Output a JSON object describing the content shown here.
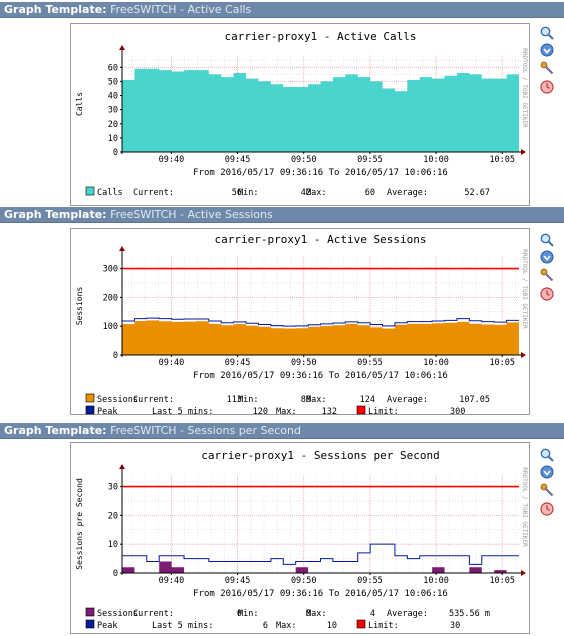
{
  "graphs": [
    {
      "header_prefix": "Graph Template:",
      "header_name": "FreeSWITCH - Active Calls",
      "chart_data": {
        "type": "area",
        "title": "carrier-proxy1 - Active Calls",
        "ylabel": "Calls",
        "side_text": "RRDTOOL / TOBI OETIKER",
        "x_ticks": [
          "09:40",
          "09:45",
          "09:50",
          "09:55",
          "10:00",
          "10:05"
        ],
        "y_ticks": [
          "0",
          "10",
          "20",
          "30",
          "40",
          "50",
          "60"
        ],
        "ylim": [
          0,
          68
        ],
        "xlim": [
          "09:36:16",
          "10:06:16"
        ],
        "time_range": "From 2016/05/17 09:36:16 To 2016/05/17 10:06:16",
        "series": [
          {
            "name": "Calls",
            "color": "#49d4cd",
            "kind": "area",
            "values": [
              51,
              59,
              59,
              58,
              57,
              58,
              58,
              55,
              53,
              56,
              52,
              50,
              48,
              46,
              46,
              48,
              50,
              53,
              55,
              53,
              50,
              45,
              43,
              51,
              53,
              52,
              54,
              56,
              55,
              52,
              52,
              55
            ]
          }
        ],
        "legend": [
          [
            {
              "swatch": "#49d4cd",
              "label": "Calls"
            },
            {
              "text": "Current:"
            },
            {
              "text": "56"
            },
            {
              "text": "Min:"
            },
            {
              "text": "42"
            },
            {
              "text": "Max:"
            },
            {
              "text": "60"
            },
            {
              "text": "Average:"
            },
            {
              "text": "52.67"
            }
          ]
        ]
      }
    },
    {
      "header_prefix": "Graph Template:",
      "header_name": "FreeSWITCH - Active Sessions",
      "chart_data": {
        "type": "area",
        "title": "carrier-proxy1 - Active Sessions",
        "ylabel": "Sessions",
        "side_text": "RRDTOOL / TOBI OETIKER",
        "x_ticks": [
          "09:40",
          "09:45",
          "09:50",
          "09:55",
          "10:00",
          "10:05"
        ],
        "y_ticks": [
          "0",
          "100",
          "200",
          "300"
        ],
        "ylim": [
          0,
          340
        ],
        "xlim": [
          "09:36:16",
          "10:06:16"
        ],
        "time_range": "From 2016/05/17 09:36:16 To 2016/05/17 10:06:16",
        "limit": 300,
        "series": [
          {
            "name": "Sessions",
            "color": "#ea8f00",
            "kind": "area",
            "values": [
              107,
              118,
              120,
              117,
              115,
              116,
              117,
              108,
              103,
              107,
              102,
              97,
              93,
              92,
              93,
              97,
              100,
              103,
              108,
              103,
              96,
              92,
              105,
              108,
              108,
              110,
              112,
              115,
              108,
              106,
              105,
              113
            ]
          },
          {
            "name": "Peak",
            "color": "#001d9e",
            "kind": "line",
            "values": [
              118,
              126,
              128,
              126,
              124,
              125,
              125,
              118,
              112,
              115,
              110,
              106,
              102,
              100,
              101,
              105,
              108,
              111,
              115,
              112,
              106,
              101,
              112,
              116,
              116,
              118,
              120,
              126,
              119,
              116,
              114,
              120
            ]
          },
          {
            "name": "Limit",
            "color": "#ff0000",
            "kind": "line",
            "values": [
              300,
              300
            ]
          }
        ],
        "legend": [
          [
            {
              "swatch": "#ea8f00",
              "label": "Sessions"
            },
            {
              "text": "Current:"
            },
            {
              "text": "113"
            },
            {
              "text": "Min:"
            },
            {
              "text": "88"
            },
            {
              "text": "Max:"
            },
            {
              "text": "124"
            },
            {
              "text": "Average:"
            },
            {
              "text": "107.05"
            }
          ],
          [
            {
              "swatch": "#001d9e",
              "label": "Peak"
            },
            {
              "text": "Last 5 mins:"
            },
            {
              "text": "120"
            },
            {
              "text": "Max:"
            },
            {
              "text": "132"
            },
            {
              "swatch": "#ff0000",
              "label": "Limit:"
            },
            {
              "text": "300"
            }
          ]
        ]
      }
    },
    {
      "header_prefix": "Graph Template:",
      "header_name": "FreeSWITCH - Sessions per Second",
      "chart_data": {
        "type": "area",
        "title": "carrier-proxy1 - Sessions per Second",
        "ylabel": "Sessions pre Second",
        "side_text": "RRDTOOL / TOBI OETIKER",
        "x_ticks": [
          "09:40",
          "09:45",
          "09:50",
          "09:55",
          "10:00",
          "10:05"
        ],
        "y_ticks": [
          "0",
          "10",
          "20",
          "30"
        ],
        "ylim": [
          0,
          34
        ],
        "xlim": [
          "09:36:16",
          "10:06:16"
        ],
        "time_range": "From 2016/05/17 09:36:16 To 2016/05/17 10:06:16",
        "limit": 30,
        "series": [
          {
            "name": "Sessions",
            "color": "#7b1b72",
            "kind": "area",
            "values": [
              2,
              0,
              0,
              4,
              2,
              0,
              0,
              0,
              0,
              0,
              0,
              0,
              0,
              0,
              2,
              0,
              0,
              0,
              0,
              0,
              0,
              0,
              0,
              0,
              0,
              2,
              0,
              0,
              2,
              0,
              1,
              0
            ]
          },
          {
            "name": "Peak",
            "color": "#001d9e",
            "kind": "line",
            "values": [
              6,
              6,
              4,
              6,
              6,
              5,
              5,
              4,
              4,
              4,
              4,
              4,
              5,
              3,
              4,
              4,
              5,
              4,
              4,
              7,
              10,
              10,
              6,
              5,
              6,
              6,
              6,
              6,
              3,
              6,
              6,
              6
            ]
          },
          {
            "name": "Limit",
            "color": "#ff0000",
            "kind": "line",
            "values": [
              30,
              30
            ]
          }
        ],
        "legend": [
          [
            {
              "swatch": "#7b1b72",
              "label": "Sessions"
            },
            {
              "text": "Current:"
            },
            {
              "text": "0"
            },
            {
              "text": "Min:"
            },
            {
              "text": "0"
            },
            {
              "text": "Max:"
            },
            {
              "text": "4"
            },
            {
              "text": "Average:"
            },
            {
              "text": "535.56 m"
            }
          ],
          [
            {
              "swatch": "#001d9e",
              "label": "Peak"
            },
            {
              "text": "Last 5 mins:"
            },
            {
              "text": "6"
            },
            {
              "text": "Max:"
            },
            {
              "text": "10"
            },
            {
              "swatch": "#ff0000",
              "label": "Limit:"
            },
            {
              "text": "30"
            }
          ]
        ]
      }
    }
  ]
}
